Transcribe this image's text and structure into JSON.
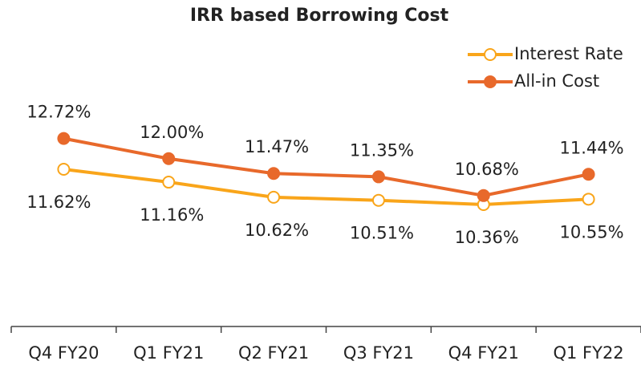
{
  "chart_data": {
    "type": "line",
    "title": "IRR based Borrowing Cost",
    "categories": [
      "Q4 FY20",
      "Q1 FY21",
      "Q2 FY21",
      "Q3 FY21",
      "Q4 FY21",
      "Q1 FY22"
    ],
    "series": [
      {
        "name": "Interest Rate",
        "color": "#F9A51A",
        "marker_fill": "#ffffff",
        "values": [
          11.62,
          11.16,
          10.62,
          10.51,
          10.36,
          10.55
        ],
        "value_labels": [
          "11.62%",
          "11.16%",
          "10.62%",
          "10.51%",
          "10.36%",
          "10.55%"
        ]
      },
      {
        "name": "All-in Cost",
        "color": "#E8692B",
        "marker_fill": "#E8692B",
        "values": [
          12.72,
          12.0,
          11.47,
          11.35,
          10.68,
          11.44
        ],
        "value_labels": [
          "12.72%",
          "12.00%",
          "11.47%",
          "11.35%",
          "10.68%",
          "11.44%"
        ]
      }
    ],
    "ylim": [
      6,
      14
    ],
    "legend": "top right"
  }
}
